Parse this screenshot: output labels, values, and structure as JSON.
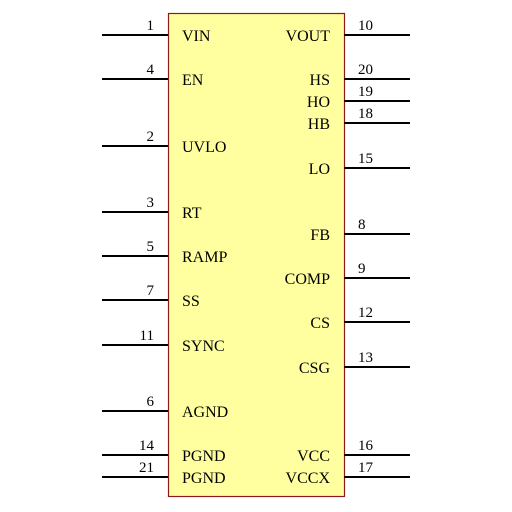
{
  "colors": {
    "body_fill": "#ffffa0",
    "body_stroke": "#8b1a1a",
    "pin_line": "#000000",
    "text": "#000000"
  },
  "component": {
    "left_pins": [
      {
        "number": "1",
        "name": "VIN"
      },
      {
        "number": "4",
        "name": "EN"
      },
      {
        "number": "2",
        "name": "UVLO"
      },
      {
        "number": "3",
        "name": "RT"
      },
      {
        "number": "5",
        "name": "RAMP"
      },
      {
        "number": "7",
        "name": "SS"
      },
      {
        "number": "11",
        "name": "SYNC"
      },
      {
        "number": "6",
        "name": "AGND"
      },
      {
        "number": "14",
        "name": "PGND"
      },
      {
        "number": "21",
        "name": "PGND"
      }
    ],
    "right_pins": [
      {
        "number": "10",
        "name": "VOUT"
      },
      {
        "number": "20",
        "name": "HS"
      },
      {
        "number": "19",
        "name": "HO"
      },
      {
        "number": "18",
        "name": "HB"
      },
      {
        "number": "15",
        "name": "LO"
      },
      {
        "number": "8",
        "name": "FB"
      },
      {
        "number": "9",
        "name": "COMP"
      },
      {
        "number": "12",
        "name": "CS"
      },
      {
        "number": "13",
        "name": "CSG"
      },
      {
        "number": "16",
        "name": "VCC"
      },
      {
        "number": "17",
        "name": "VCCX"
      }
    ]
  }
}
